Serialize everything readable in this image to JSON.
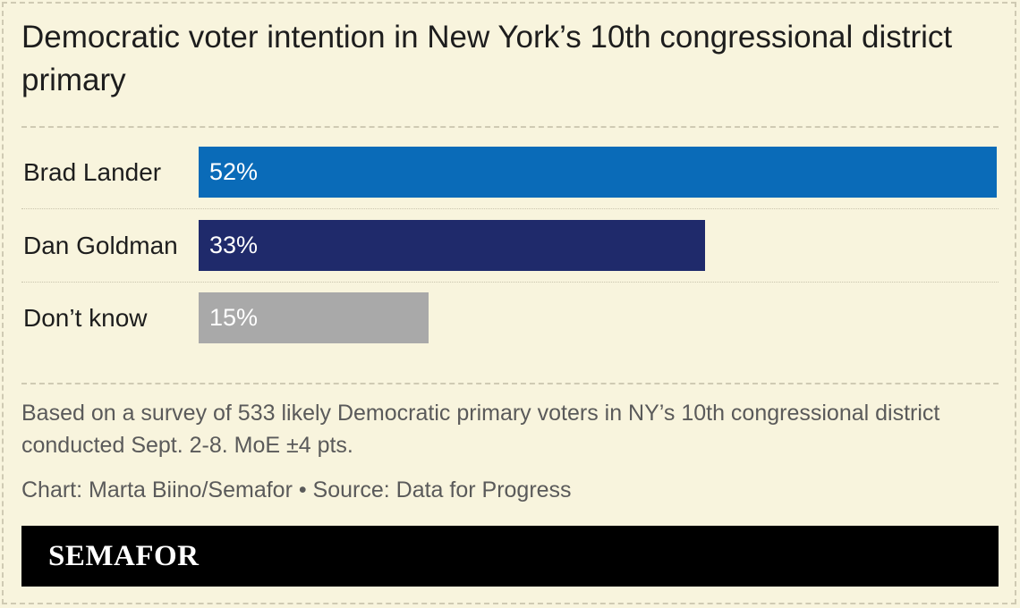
{
  "title": "Democratic voter intention in New York’s 10th congressional district primary",
  "note": "Based on a survey of 533 likely Democratic primary voters in NY’s 10th congressional district conducted Sept. 2-8. MoE ±4 pts.",
  "credit": "Chart: Marta Biino/Semafor • Source: Data for Progress",
  "brand": "SEMAFOR",
  "colors": {
    "background": "#f8f4dd",
    "brad_lander": "#0a6bb8",
    "dan_goldman": "#1f2a6b",
    "dont_know": "#a9a9a9",
    "footer": "#000000"
  },
  "chart_data": {
    "type": "bar",
    "orientation": "horizontal",
    "categories": [
      "Brad Lander",
      "Dan Goldman",
      "Don’t know"
    ],
    "values": [
      52,
      33,
      15
    ],
    "value_labels": [
      "52%",
      "33%",
      "15%"
    ],
    "bar_colors": [
      "#0a6bb8",
      "#1f2a6b",
      "#a9a9a9"
    ],
    "xlim": [
      0,
      52
    ]
  }
}
